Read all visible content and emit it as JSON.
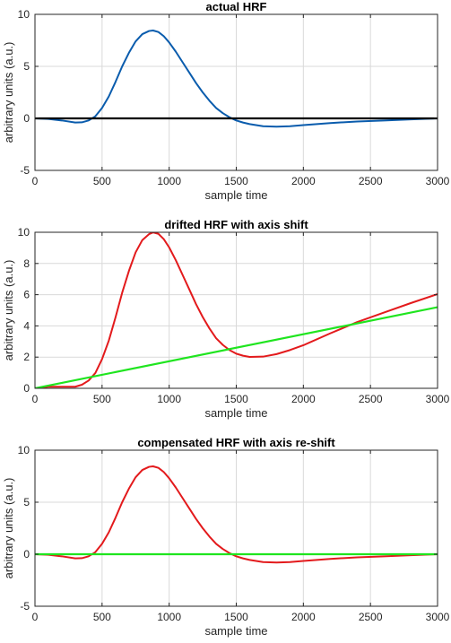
{
  "chart_data": [
    {
      "type": "line",
      "title": "actual HRF",
      "xlabel": "sample time",
      "ylabel": "arbitrary units (a.u.)",
      "xlim": [
        0,
        3000
      ],
      "ylim": [
        -5,
        10
      ],
      "xticks": [
        0,
        500,
        1000,
        1500,
        2000,
        2500,
        3000
      ],
      "yticks": [
        -5,
        0,
        5,
        10
      ],
      "grid": true,
      "series": [
        {
          "color": "#0a5cad",
          "x": [
            0,
            100,
            200,
            300,
            350,
            400,
            450,
            500,
            550,
            600,
            650,
            700,
            750,
            800,
            850,
            880,
            920,
            960,
            1000,
            1050,
            1100,
            1150,
            1200,
            1250,
            1300,
            1350,
            1400,
            1450,
            1500,
            1550,
            1600,
            1700,
            1800,
            1900,
            2000,
            2200,
            2400,
            2600,
            2800,
            3000
          ],
          "y": [
            0,
            -0.05,
            -0.2,
            -0.4,
            -0.38,
            -0.2,
            0.2,
            1.0,
            2.1,
            3.5,
            5.0,
            6.3,
            7.4,
            8.1,
            8.4,
            8.45,
            8.3,
            7.9,
            7.3,
            6.4,
            5.4,
            4.4,
            3.4,
            2.5,
            1.7,
            1.0,
            0.5,
            0.1,
            -0.2,
            -0.4,
            -0.55,
            -0.75,
            -0.8,
            -0.75,
            -0.65,
            -0.45,
            -0.3,
            -0.2,
            -0.1,
            0
          ]
        },
        {
          "color": "#000000",
          "x": [
            0,
            3000
          ],
          "y": [
            0,
            0
          ]
        }
      ]
    },
    {
      "type": "line",
      "title": "drifted HRF with axis shift",
      "xlabel": "sample time",
      "ylabel": "arbitrary units (a.u.)",
      "xlim": [
        0,
        3000
      ],
      "ylim": [
        0,
        10
      ],
      "xticks": [
        0,
        500,
        1000,
        1500,
        2000,
        2500,
        3000
      ],
      "yticks": [
        0,
        2,
        4,
        6,
        8,
        10
      ],
      "grid": true,
      "series": [
        {
          "color": "#e31a1c",
          "x": [
            0,
            100,
            200,
            300,
            350,
            400,
            450,
            500,
            550,
            600,
            650,
            700,
            750,
            800,
            850,
            880,
            920,
            960,
            1000,
            1050,
            1100,
            1150,
            1200,
            1250,
            1300,
            1350,
            1400,
            1450,
            1500,
            1550,
            1600,
            1700,
            1800,
            1900,
            2000,
            2200,
            2400,
            2600,
            2800,
            3000
          ],
          "y": [
            0,
            0.1,
            0.1,
            0.1,
            0.23,
            0.5,
            0.98,
            1.87,
            3.05,
            4.54,
            6.13,
            7.52,
            8.71,
            9.5,
            9.88,
            9.99,
            9.9,
            9.56,
            9.03,
            8.2,
            7.27,
            6.34,
            5.4,
            4.57,
            3.84,
            3.21,
            2.78,
            2.45,
            2.22,
            2.09,
            2.01,
            2.03,
            2.19,
            2.45,
            2.76,
            3.52,
            4.24,
            4.85,
            5.46,
            6.04
          ]
        },
        {
          "color": "#1fe51f",
          "x": [
            0,
            3000
          ],
          "y": [
            0,
            5.2
          ]
        }
      ]
    },
    {
      "type": "line",
      "title": "compensated HRF with axis re-shift",
      "xlabel": "sample time",
      "ylabel": "arbitrary units (a.u.)",
      "xlim": [
        0,
        3000
      ],
      "ylim": [
        -5,
        10
      ],
      "xticks": [
        0,
        500,
        1000,
        1500,
        2000,
        2500,
        3000
      ],
      "yticks": [
        -5,
        0,
        5,
        10
      ],
      "grid": true,
      "series": [
        {
          "color": "#e31a1c",
          "x": [
            0,
            100,
            200,
            300,
            350,
            400,
            450,
            500,
            550,
            600,
            650,
            700,
            750,
            800,
            850,
            880,
            920,
            960,
            1000,
            1050,
            1100,
            1150,
            1200,
            1250,
            1300,
            1350,
            1400,
            1450,
            1500,
            1550,
            1600,
            1700,
            1800,
            1900,
            2000,
            2200,
            2400,
            2600,
            2800,
            3000
          ],
          "y": [
            0,
            -0.05,
            -0.2,
            -0.4,
            -0.38,
            -0.2,
            0.2,
            1.0,
            2.1,
            3.5,
            5.0,
            6.3,
            7.4,
            8.1,
            8.4,
            8.45,
            8.3,
            7.9,
            7.3,
            6.4,
            5.4,
            4.4,
            3.4,
            2.5,
            1.7,
            1.0,
            0.5,
            0.1,
            -0.2,
            -0.4,
            -0.55,
            -0.75,
            -0.8,
            -0.75,
            -0.65,
            -0.45,
            -0.3,
            -0.2,
            -0.1,
            0
          ]
        },
        {
          "color": "#1fe51f",
          "x": [
            0,
            3000
          ],
          "y": [
            0,
            0
          ]
        }
      ]
    }
  ]
}
